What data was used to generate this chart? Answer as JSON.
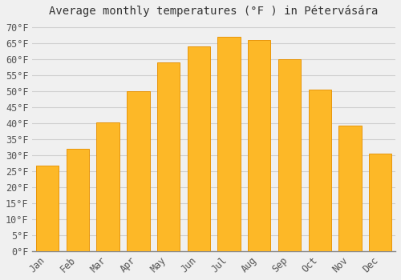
{
  "title": "Average monthly temperatures (°F ) in Pétervására",
  "months": [
    "Jan",
    "Feb",
    "Mar",
    "Apr",
    "May",
    "Jun",
    "Jul",
    "Aug",
    "Sep",
    "Oct",
    "Nov",
    "Dec"
  ],
  "values": [
    26.6,
    32.0,
    40.1,
    50.0,
    58.8,
    63.9,
    67.0,
    65.8,
    59.9,
    50.5,
    39.2,
    30.5
  ],
  "bar_color": "#FDB827",
  "bar_edge_color": "#E8960A",
  "background_color": "#f0f0f0",
  "grid_color": "#d0d0d0",
  "ytick_min": 0,
  "ytick_max": 70,
  "ytick_step": 5,
  "title_fontsize": 10,
  "tick_fontsize": 8.5
}
